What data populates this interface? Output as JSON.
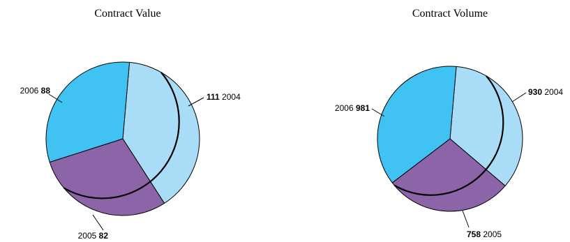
{
  "chart_data": [
    {
      "type": "pie",
      "title": "Contract Value",
      "slices": [
        {
          "label": "2004",
          "value": 111,
          "color": "#a9dcf7"
        },
        {
          "label": "2005",
          "value": 82,
          "color": "#8c64a8"
        },
        {
          "label": "2006",
          "value": 88,
          "color": "#40c3f2"
        }
      ]
    },
    {
      "type": "pie",
      "title": "Contract Volume",
      "slices": [
        {
          "label": "2004",
          "value": 930,
          "color": "#a9dcf7"
        },
        {
          "label": "2005",
          "value": 758,
          "color": "#8c64a8"
        },
        {
          "label": "2006",
          "value": 981,
          "color": "#40c3f2"
        }
      ]
    }
  ]
}
